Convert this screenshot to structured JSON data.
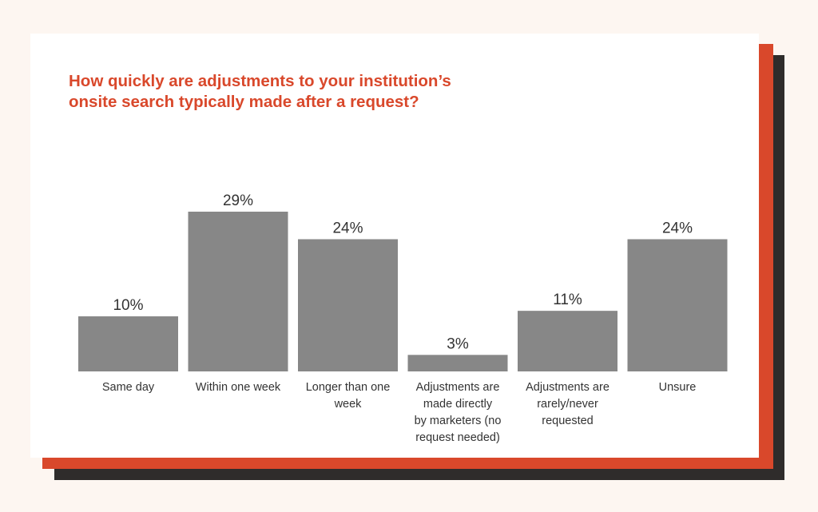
{
  "title_lines": [
    "How quickly are adjustments to your institution’s",
    "onsite search typically made after a request?"
  ],
  "colors": {
    "accent": "#d9482b",
    "bar": "#878787",
    "shadow": "#2f2c2b",
    "text": "#333333",
    "background": "#fdf6f1"
  },
  "chart_data": {
    "type": "bar",
    "title": "How quickly are adjustments to your institution’s onsite search typically made after a request?",
    "categories": [
      "Same day",
      "Within one week",
      "Longer than one week",
      "Adjustments are made directly by marketers (no request needed)",
      "Adjustments are rarely/never requested",
      "Unsure"
    ],
    "category_lines": [
      [
        "Same day"
      ],
      [
        "Within one week"
      ],
      [
        "Longer than one",
        "week"
      ],
      [
        "Adjustments are",
        "made directly",
        "by marketers (no",
        "request needed)"
      ],
      [
        "Adjustments are",
        "rarely/never",
        "requested"
      ],
      [
        "Unsure"
      ]
    ],
    "values": [
      10,
      29,
      24,
      3,
      11,
      24
    ],
    "value_labels": [
      "10%",
      "29%",
      "24%",
      "3%",
      "11%",
      "24%"
    ],
    "xlabel": "",
    "ylabel": "",
    "ylim": [
      0,
      29
    ],
    "grid": false,
    "legend": "none"
  }
}
